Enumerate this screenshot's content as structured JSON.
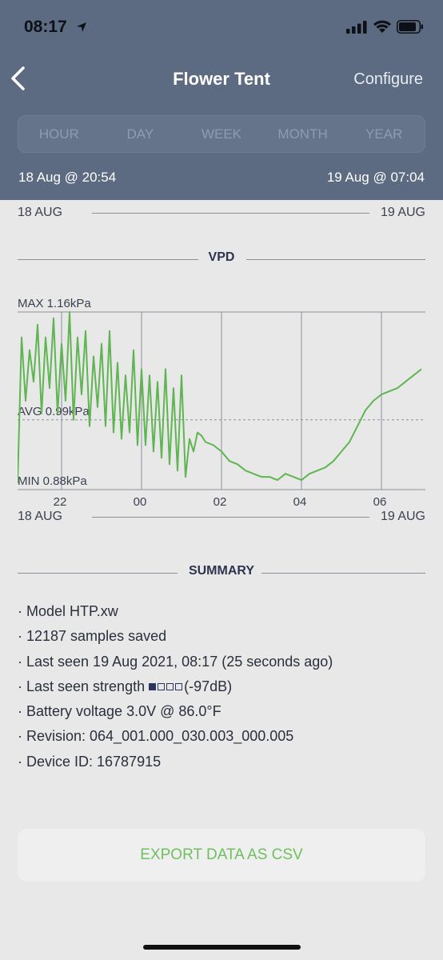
{
  "status_bar": {
    "time": "08:17"
  },
  "header": {
    "title": "Flower Tent",
    "configure_label": "Configure",
    "ranges": [
      "HOUR",
      "DAY",
      "WEEK",
      "MONTH",
      "YEAR"
    ],
    "date_start": "18 Aug @ 20:54",
    "date_end": "19 Aug @ 07:04"
  },
  "timeline_top": {
    "left": "18 AUG",
    "right": "19 AUG"
  },
  "timeline_bottom": {
    "left": "18 AUG",
    "right": "19 AUG"
  },
  "vpd_section": {
    "title": "VPD"
  },
  "chart_data": {
    "type": "line",
    "title": "VPD",
    "max_label": "MAX 1.16kPa",
    "avg_label": "AVG 0.99kPa",
    "min_label": "MIN 0.88kPa",
    "x_ticks": [
      "22",
      "00",
      "02",
      "04",
      "06"
    ],
    "line_color": "#5fb551",
    "ylim": [
      0.88,
      1.16
    ],
    "avg": 0.99,
    "series": [
      {
        "x": [
          20.9,
          21.0,
          21.1,
          21.2,
          21.3,
          21.4,
          21.5,
          21.6,
          21.7,
          21.8,
          21.9,
          22.0,
          22.1,
          22.2,
          22.3,
          22.4,
          22.5,
          22.6,
          22.7,
          22.8,
          22.9,
          23.0,
          23.1,
          23.2,
          23.3,
          23.4,
          23.5,
          23.6,
          23.7,
          23.8,
          23.9,
          24.0,
          24.1,
          24.2,
          24.3,
          24.4,
          24.5,
          24.6,
          24.7,
          24.8,
          24.9,
          25.0,
          25.1,
          25.2,
          25.3,
          25.4,
          25.5,
          25.6,
          25.8,
          26.0,
          26.2,
          26.4,
          26.6,
          26.8,
          27.0,
          27.2,
          27.4,
          27.6,
          27.8,
          28.0,
          28.2,
          28.4,
          28.6,
          28.8,
          29.0,
          29.2,
          29.4,
          29.6,
          29.8,
          30.0,
          30.2,
          30.4,
          30.6,
          30.8,
          31.0
        ],
        "y": [
          0.89,
          1.12,
          1.02,
          1.1,
          1.05,
          1.14,
          1.0,
          1.12,
          1.04,
          1.15,
          1.0,
          1.11,
          1.02,
          1.16,
          0.99,
          1.12,
          1.03,
          1.13,
          0.98,
          1.09,
          1.01,
          1.11,
          0.98,
          1.13,
          0.97,
          1.08,
          0.96,
          1.06,
          0.97,
          1.1,
          0.95,
          1.07,
          0.95,
          1.06,
          0.94,
          1.05,
          0.93,
          1.07,
          0.92,
          1.04,
          0.91,
          1.06,
          0.9,
          0.96,
          0.94,
          0.97,
          0.965,
          0.955,
          0.95,
          0.94,
          0.925,
          0.92,
          0.91,
          0.905,
          0.9,
          0.9,
          0.895,
          0.905,
          0.9,
          0.895,
          0.905,
          0.91,
          0.915,
          0.925,
          0.94,
          0.955,
          0.98,
          1.005,
          1.02,
          1.03,
          1.035,
          1.04,
          1.05,
          1.06,
          1.07
        ]
      }
    ]
  },
  "summary": {
    "title": "SUMMARY",
    "model": "· Model HTP.xw",
    "samples": "· 12187 samples saved",
    "last_seen": "· Last seen 19 Aug 2021, 08:17 (25 seconds ago)",
    "strength_label": "· Last seen strength ",
    "strength_value": "(-97dB)",
    "signal_bars_on": 1,
    "signal_bars_total": 4,
    "battery": "· Battery voltage 3.0V @ 86.0°F",
    "revision": "· Revision: 064_001.000_030.003_000.005",
    "device_id": "· Device ID: 16787915"
  },
  "export": {
    "label": "EXPORT DATA AS CSV"
  }
}
